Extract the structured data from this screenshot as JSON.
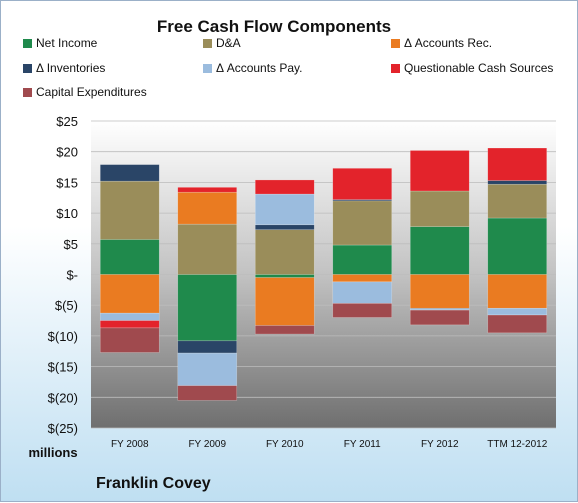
{
  "chart_data": {
    "type": "bar",
    "stacked": true,
    "title": "Free Cash Flow Components",
    "subtitle": "Franklin Covey",
    "ylabel": "millions",
    "categories": [
      "FY 2008",
      "FY 2009",
      "FY 2010",
      "FY 2011",
      "FY 2012",
      "TTM 12-2012"
    ],
    "ylim": [
      -25,
      25
    ],
    "yticks": [
      25,
      20,
      15,
      10,
      5,
      0,
      -5,
      -10,
      -15,
      -20,
      -25
    ],
    "ytick_labels": [
      "$25",
      "$20",
      "$15",
      "$10",
      "$5",
      "$-",
      "$(5)",
      "$(10)",
      "$(15)",
      "$(20)",
      "$(25)"
    ],
    "grid": true,
    "legend_position": "top",
    "series": [
      {
        "name": "Net Income",
        "color": "#1f8a4c",
        "values": [
          5.7,
          -10.8,
          -0.5,
          4.8,
          7.8,
          9.2
        ]
      },
      {
        "name": "D&A",
        "color": "#9a8d5a",
        "values": [
          9.5,
          8.2,
          7.3,
          7.2,
          5.8,
          5.5
        ]
      },
      {
        "name": "Δ Accounts Rec.",
        "color": "#ea7b21",
        "values": [
          -6.3,
          5.2,
          -7.8,
          -1.2,
          -5.5,
          -5.5
        ]
      },
      {
        "name": "Δ Inventories",
        "color": "#2a4567",
        "values": [
          2.7,
          -2.0,
          0.8,
          0.2,
          -0.1,
          0.6
        ]
      },
      {
        "name": "Δ Accounts Pay.",
        "color": "#9bbcde",
        "values": [
          -1.2,
          -5.3,
          5.0,
          -3.5,
          -0.2,
          -1.1
        ]
      },
      {
        "name": "Questionable Cash Sources",
        "color": "#e3232b",
        "values": [
          -1.2,
          0.8,
          2.3,
          5.1,
          6.6,
          5.3
        ]
      },
      {
        "name": "Capital Expenditures",
        "color": "#a04a4e",
        "values": [
          -4.0,
          -2.4,
          -1.4,
          -2.3,
          -2.4,
          -2.9
        ]
      }
    ]
  }
}
